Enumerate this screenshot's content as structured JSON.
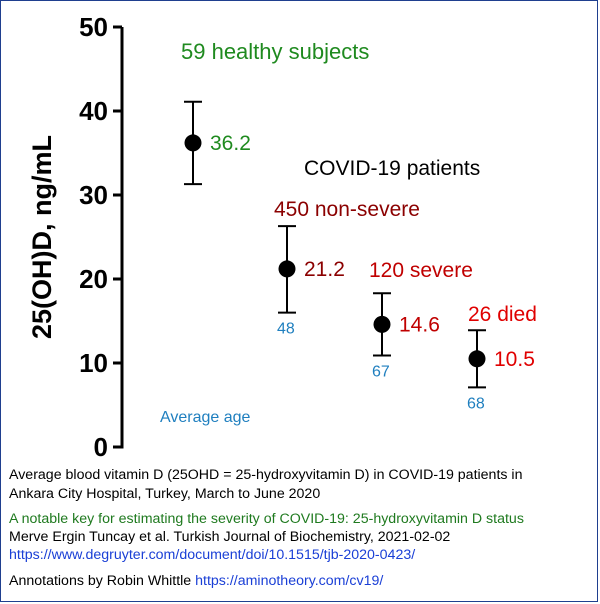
{
  "colors": {
    "axis": "#000000",
    "point": "#000000",
    "healthy_text": "#1f8a1f",
    "patients_text": "#000000",
    "nonsevere_text": "#8b0000",
    "severe_text": "#c00000",
    "died_text": "#e00000",
    "age_text": "#1f7fbf",
    "link": "#1a3fd6",
    "study_title": "#1f7a1f"
  },
  "chart_data": {
    "type": "scatter",
    "ylabel": "25(OH)D, ng/mL",
    "ylim": [
      0,
      50
    ],
    "yticks": [
      "0",
      "10",
      "20",
      "30",
      "40",
      "50"
    ],
    "points": [
      {
        "group": "59 healthy subjects",
        "mean": 36.2,
        "mean_label": "36.2",
        "err_low": 31.3,
        "err_high": 41.1,
        "age_label": ""
      },
      {
        "group": "450 non-severe",
        "mean": 21.2,
        "mean_label": "21.2",
        "err_low": 16.0,
        "err_high": 26.3,
        "age_label": "48"
      },
      {
        "group": "120 severe",
        "mean": 14.6,
        "mean_label": "14.6",
        "err_low": 10.9,
        "err_high": 18.3,
        "age_label": "67"
      },
      {
        "group": "26 died",
        "mean": 10.5,
        "mean_label": "10.5",
        "err_low": 7.1,
        "err_high": 13.9,
        "age_label": "68"
      }
    ],
    "annotations": {
      "patients_header": "COVID-19 patients",
      "average_age": "Average age"
    }
  },
  "caption": {
    "line1": "Average blood vitamin D (25OHD = 25-hydroxyvitamin D) in COVID-19 patients in",
    "line2": "Ankara City Hospital, Turkey, March to June 2020",
    "study_title": "A notable key for estimating the severity of COVID-19: 25-hydroxyvitamin D status",
    "authors": "Merve Ergin Tuncay et al. Turkish Journal of Biochemistry, 2021-02-02",
    "doi_link": "https://www.degruyter.com/document/doi/10.1515/tjb-2020-0423/",
    "annotations_by": "Annotations by Robin Whittle",
    "annotations_link": "https://aminotheory.com/cv19/"
  }
}
